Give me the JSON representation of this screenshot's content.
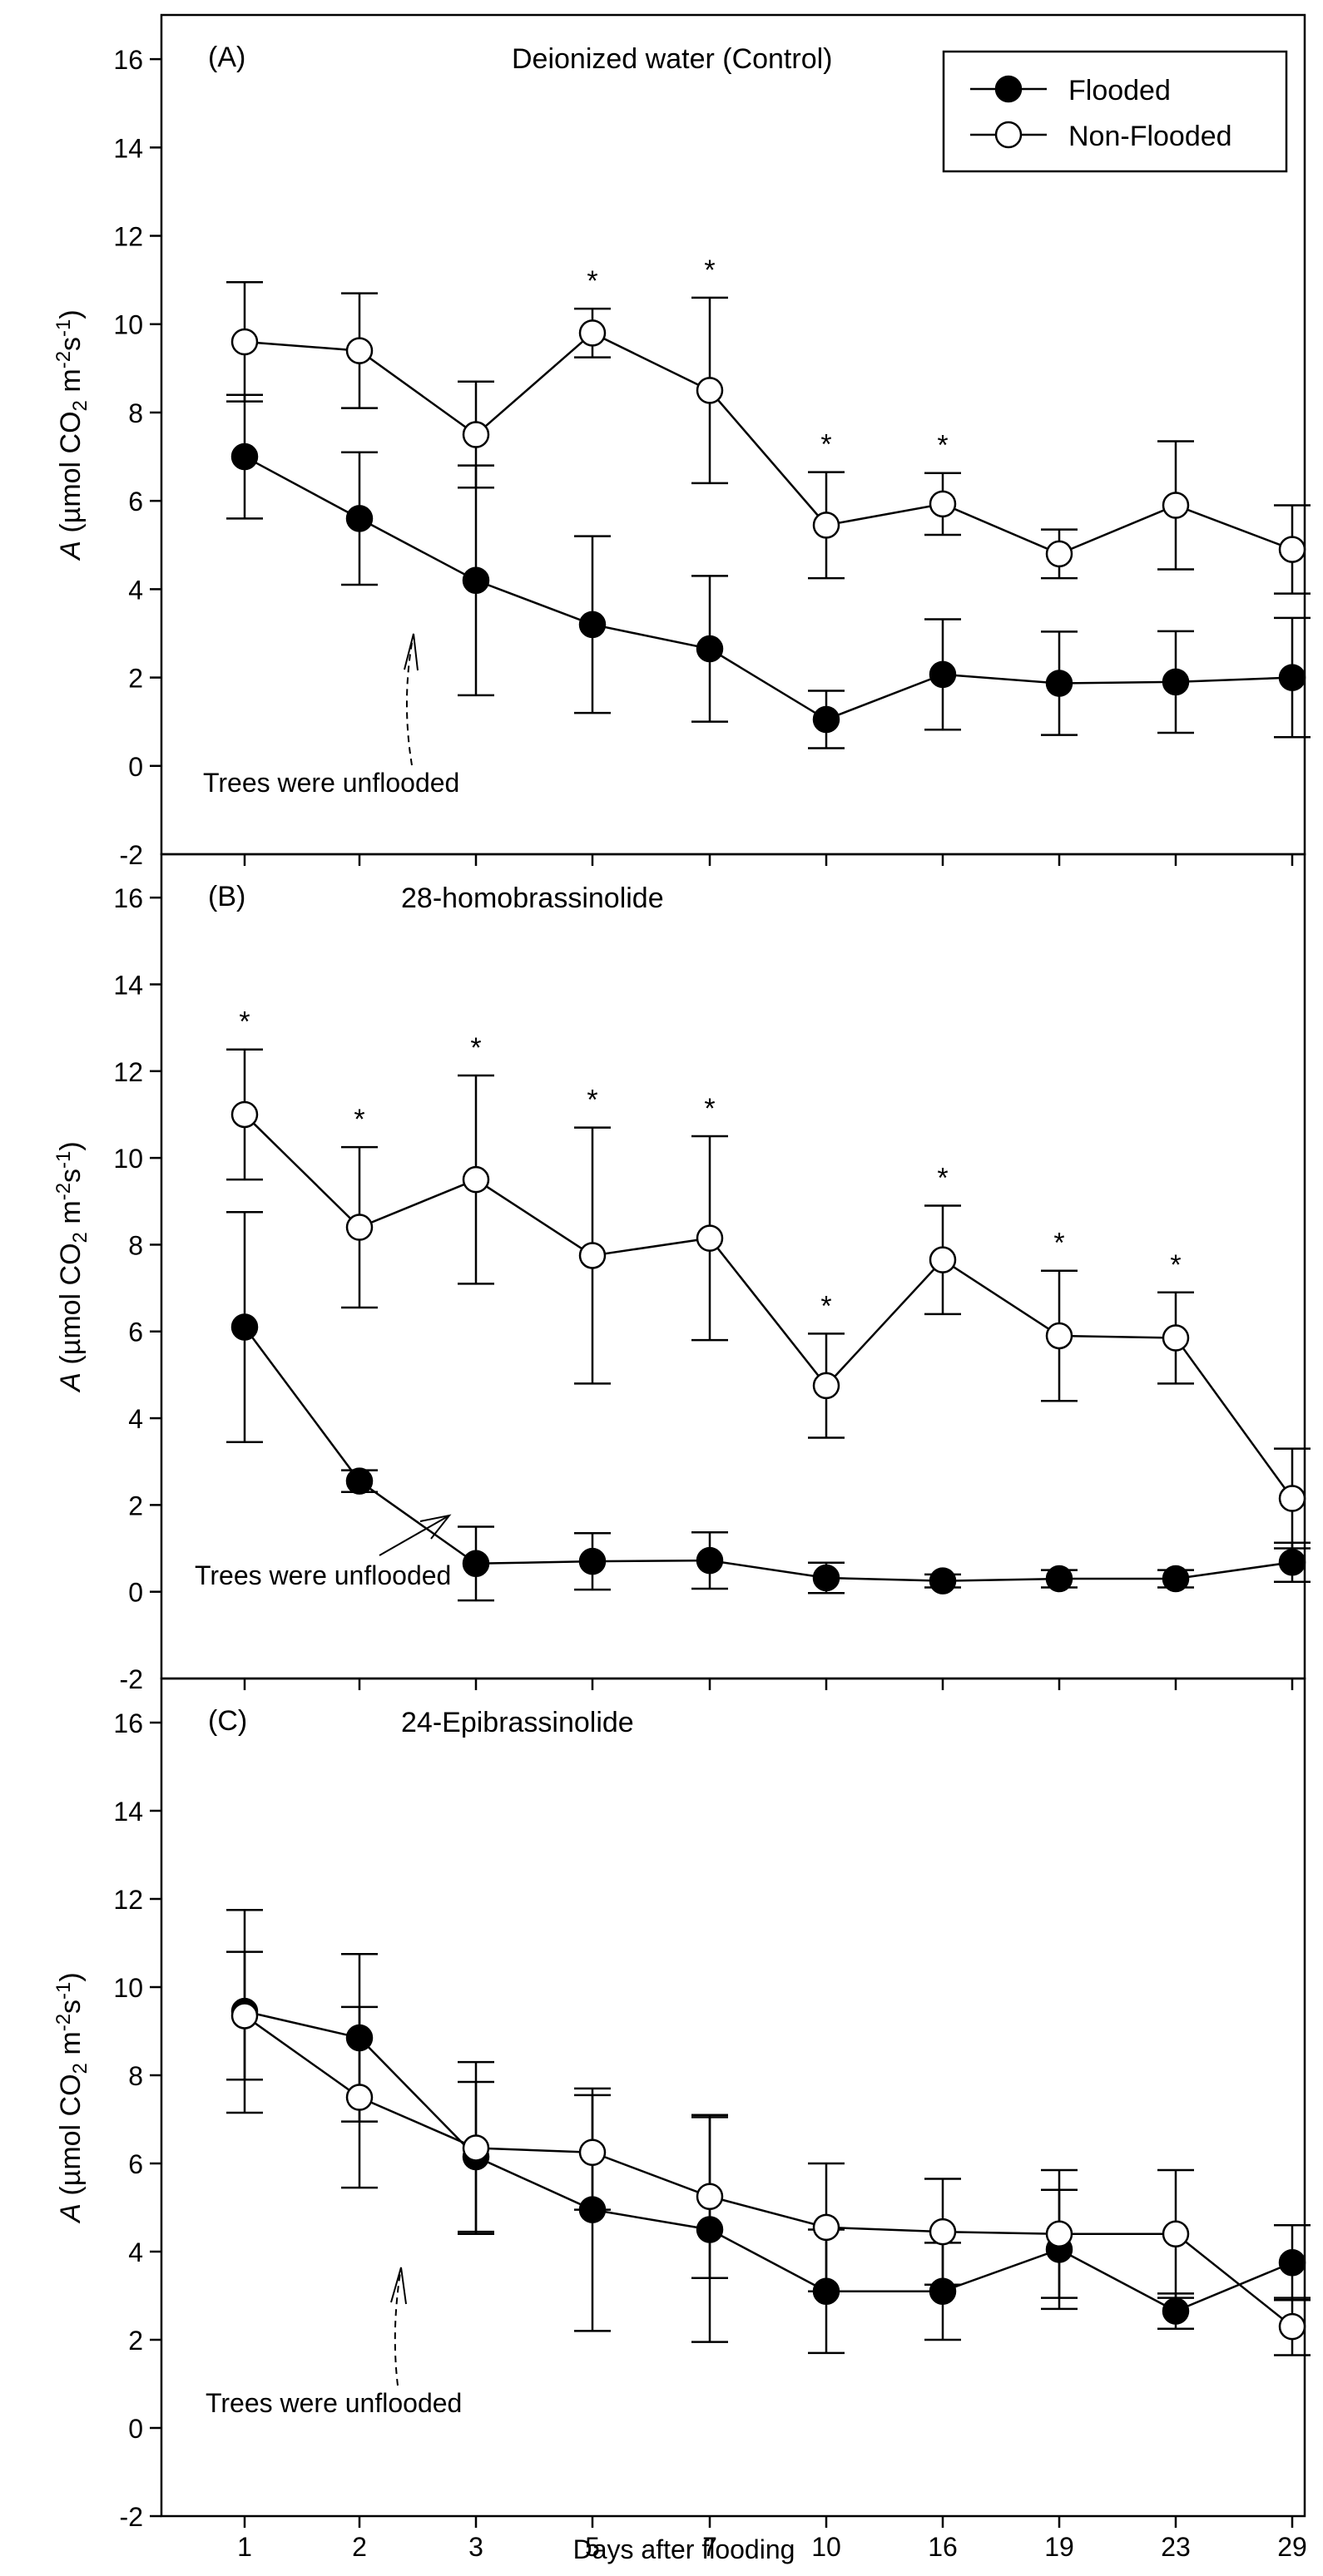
{
  "chart_data": [
    {
      "type": "line",
      "panel_label": "(A)",
      "title": "Deionized water (Control)",
      "ylabel_italic": "A",
      "ylabel_rest": " (µmol CO",
      "ylabel_sub": "2",
      "ylabel_mid": " m",
      "ylabel_sup1": "-2",
      "ylabel_s": "s",
      "ylabel_sup2": "-1",
      "ylabel_close": ")",
      "ylim": [
        -2,
        17
      ],
      "yticks": [
        "-2",
        "0",
        "2",
        "4",
        "6",
        "8",
        "10",
        "12",
        "14",
        "16"
      ],
      "categories": [
        "1",
        "2",
        "3",
        "5",
        "7",
        "10",
        "16",
        "19",
        "23",
        "29"
      ],
      "annotation": "Trees were unflooded",
      "series": [
        {
          "name": "Flooded",
          "values": [
            7.0,
            5.6,
            4.2,
            3.2,
            2.65,
            1.05,
            2.07,
            1.87,
            1.9,
            2.0
          ],
          "errors": [
            1.4,
            1.5,
            2.6,
            2.0,
            1.65,
            0.65,
            1.25,
            1.17,
            1.15,
            1.35
          ]
        },
        {
          "name": "Non-Flooded",
          "values": [
            9.6,
            9.4,
            7.5,
            9.8,
            8.5,
            5.45,
            5.93,
            4.8,
            5.9,
            4.9
          ],
          "errors": [
            1.35,
            1.3,
            1.2,
            0.55,
            2.1,
            1.2,
            0.7,
            0.55,
            1.45,
            1.0
          ]
        }
      ],
      "significant": [
        "",
        "",
        "",
        "*",
        "*",
        "*",
        "*",
        "",
        "",
        ""
      ]
    },
    {
      "type": "line",
      "panel_label": "(B)",
      "title": "28-homobrassinolide",
      "ylabel_italic": "A",
      "ylabel_rest": " (µmol CO",
      "ylabel_sub": "2",
      "ylabel_mid": " m",
      "ylabel_sup1": "-2",
      "ylabel_s": "s",
      "ylabel_sup2": "-1",
      "ylabel_close": ")",
      "ylim": [
        -2,
        17
      ],
      "yticks": [
        "-2",
        "0",
        "2",
        "4",
        "6",
        "8",
        "10",
        "12",
        "14",
        "16"
      ],
      "categories": [
        "1",
        "2",
        "3",
        "5",
        "7",
        "10",
        "16",
        "19",
        "23",
        "29"
      ],
      "annotation": "Trees were unflooded",
      "series": [
        {
          "name": "Flooded",
          "values": [
            6.1,
            2.55,
            0.65,
            0.7,
            0.72,
            0.32,
            0.25,
            0.3,
            0.3,
            0.68
          ],
          "errors": [
            2.65,
            0.25,
            0.85,
            0.65,
            0.65,
            0.35,
            0.15,
            0.2,
            0.2,
            0.45
          ]
        },
        {
          "name": "Non-Flooded",
          "values": [
            11.0,
            8.4,
            9.5,
            7.75,
            8.15,
            4.75,
            7.65,
            5.9,
            5.85,
            2.15
          ],
          "errors": [
            1.5,
            1.85,
            2.4,
            2.95,
            2.35,
            1.2,
            1.25,
            1.5,
            1.05,
            1.15
          ]
        }
      ],
      "significant": [
        "*",
        "*",
        "*",
        "*",
        "*",
        "*",
        "*",
        "*",
        "*",
        ""
      ]
    },
    {
      "type": "line",
      "panel_label": "(C)",
      "title": "24-Epibrassinolide",
      "ylabel_italic": "A",
      "ylabel_rest": " (µmol CO",
      "ylabel_sub": "2",
      "ylabel_mid": " m",
      "ylabel_sup1": "-2",
      "ylabel_s": "s",
      "ylabel_sup2": "-1",
      "ylabel_close": ")",
      "ylim": [
        -2,
        17
      ],
      "yticks": [
        "-2",
        "0",
        "2",
        "4",
        "6",
        "8",
        "10",
        "12",
        "14",
        "16"
      ],
      "categories": [
        "1",
        "2",
        "3",
        "5",
        "7",
        "10",
        "16",
        "19",
        "23",
        "29"
      ],
      "annotation": "Trees were unflooded",
      "series": [
        {
          "name": "Flooded",
          "values": [
            9.45,
            8.85,
            6.15,
            4.95,
            4.5,
            3.1,
            3.1,
            4.05,
            2.65,
            3.75
          ],
          "errors": [
            2.3,
            1.9,
            1.7,
            2.75,
            2.55,
            1.4,
            1.1,
            1.35,
            0.4,
            0.85
          ]
        },
        {
          "name": "Non-Flooded",
          "values": [
            9.35,
            7.5,
            6.35,
            6.25,
            5.25,
            4.55,
            4.45,
            4.4,
            4.4,
            2.3
          ],
          "errors": [
            1.45,
            2.05,
            1.95,
            1.3,
            1.85,
            1.45,
            1.2,
            1.45,
            1.45,
            0.65
          ]
        }
      ],
      "significant": [
        "",
        "",
        "",
        "",
        "",
        "",
        "",
        "",
        "",
        ""
      ]
    }
  ],
  "legend": {
    "entries": [
      "Flooded",
      "Non-Flooded"
    ],
    "placement": "top-right"
  },
  "xlabel": "Days after flooding"
}
